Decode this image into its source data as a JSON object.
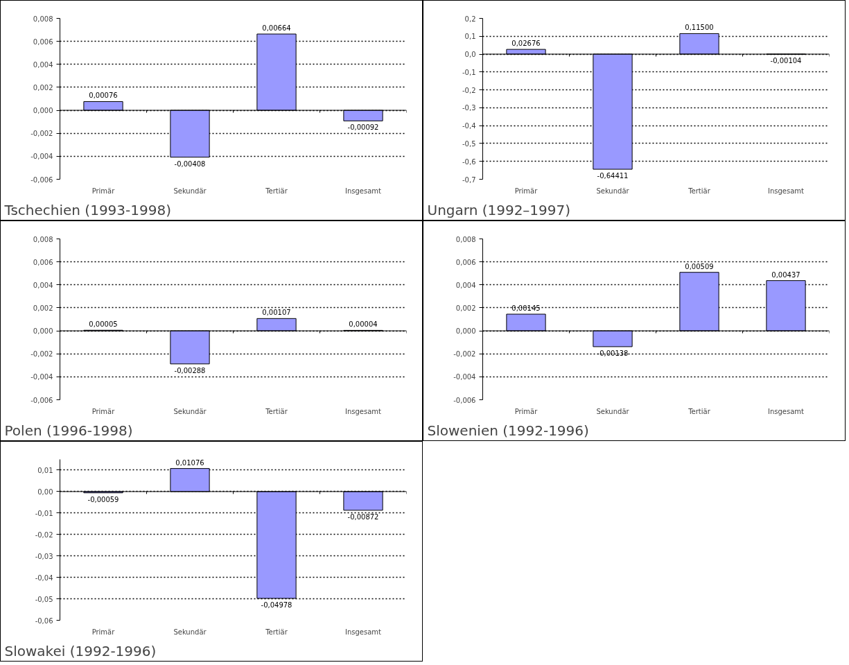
{
  "chart_data": [
    {
      "type": "bar",
      "title": "Tschechien (1993-1998)",
      "categories": [
        "Primär",
        "Sekundär",
        "Tertiär",
        "Insgesamt"
      ],
      "values": [
        0.00076,
        -0.00408,
        0.00664,
        -0.00092
      ],
      "value_labels": [
        "0,00076",
        "-0,00408",
        "0,00664",
        "-0,00092"
      ],
      "color": "#9999ff",
      "ylim": [
        -0.006,
        0.008
      ],
      "yticks": [
        {
          "value": -0.006,
          "label": "-0,006"
        },
        {
          "value": -0.004,
          "label": "-0,004"
        },
        {
          "value": -0.002,
          "label": "-0,002"
        },
        {
          "value": 0,
          "label": "0,000"
        },
        {
          "value": 0.002,
          "label": "0,002"
        },
        {
          "value": 0.004,
          "label": "0,004"
        },
        {
          "value": 0.006,
          "label": "0,006"
        },
        {
          "value": 0.008,
          "label": "0,008"
        }
      ],
      "grid": "y"
    },
    {
      "type": "bar",
      "title": "Ungarn (1992–1997)",
      "categories": [
        "Primär",
        "Sekundär",
        "Tertiär",
        "Insgesamt"
      ],
      "values": [
        0.02676,
        -0.64411,
        0.115,
        -0.00104
      ],
      "value_labels": [
        "0,02676",
        "-0,64411",
        "0,11500",
        "-0,00104"
      ],
      "color": "#9999ff",
      "ylim": [
        -0.7,
        0.2
      ],
      "yticks": [
        {
          "value": -0.7,
          "label": "-0,7"
        },
        {
          "value": -0.6,
          "label": "-0,6"
        },
        {
          "value": -0.5,
          "label": "-0,5"
        },
        {
          "value": -0.4,
          "label": "-0,4"
        },
        {
          "value": -0.3,
          "label": "-0,3"
        },
        {
          "value": -0.2,
          "label": "-0,2"
        },
        {
          "value": -0.1,
          "label": "-0,1"
        },
        {
          "value": 0,
          "label": "0,0"
        },
        {
          "value": 0.1,
          "label": "0,1"
        },
        {
          "value": 0.2,
          "label": "0,2"
        }
      ],
      "grid": "y"
    },
    {
      "type": "bar",
      "title": "Polen (1996-1998)",
      "categories": [
        "Primär",
        "Sekundär",
        "Tertiär",
        "Insgesamt"
      ],
      "values": [
        5e-05,
        -0.00288,
        0.00107,
        4e-05
      ],
      "value_labels": [
        "0,00005",
        "-0,00288",
        "0,00107",
        "0,00004"
      ],
      "color": "#9999ff",
      "ylim": [
        -0.006,
        0.008
      ],
      "yticks": [
        {
          "value": -0.006,
          "label": "-0,006"
        },
        {
          "value": -0.004,
          "label": "-0,004"
        },
        {
          "value": -0.002,
          "label": "-0,002"
        },
        {
          "value": 0,
          "label": "0,000"
        },
        {
          "value": 0.002,
          "label": "0,002"
        },
        {
          "value": 0.004,
          "label": "0,004"
        },
        {
          "value": 0.006,
          "label": "0,006"
        },
        {
          "value": 0.008,
          "label": "0,008"
        }
      ],
      "grid": "y"
    },
    {
      "type": "bar",
      "title": "Slowenien (1992-1996)",
      "categories": [
        "Primär",
        "Sekundär",
        "Tertiär",
        "Insgesamt"
      ],
      "values": [
        0.00145,
        -0.00138,
        0.00509,
        0.00437
      ],
      "value_labels": [
        "0,00145",
        "-0,00138",
        "0,00509",
        "0,00437"
      ],
      "color": "#9999ff",
      "ylim": [
        -0.006,
        0.008
      ],
      "yticks": [
        {
          "value": -0.006,
          "label": "-0,006"
        },
        {
          "value": -0.004,
          "label": "-0,004"
        },
        {
          "value": -0.002,
          "label": "-0,002"
        },
        {
          "value": 0,
          "label": "0,000"
        },
        {
          "value": 0.002,
          "label": "0,002"
        },
        {
          "value": 0.004,
          "label": "0,004"
        },
        {
          "value": 0.006,
          "label": "0,006"
        },
        {
          "value": 0.008,
          "label": "0,008"
        }
      ],
      "grid": "y"
    },
    {
      "type": "bar",
      "title": "Slowakei (1992-1996)",
      "categories": [
        "Primär",
        "Sekundär",
        "Tertiär",
        "Insgesamt"
      ],
      "values": [
        -0.00059,
        0.01076,
        -0.04978,
        -0.00872
      ],
      "value_labels": [
        "-0,00059",
        "0,01076",
        "-0,04978",
        "-0,00872"
      ],
      "color": "#9999ff",
      "ylim": [
        -0.06,
        0.015
      ],
      "yticks": [
        {
          "value": -0.06,
          "label": "-0,06"
        },
        {
          "value": -0.05,
          "label": "-0,05"
        },
        {
          "value": -0.04,
          "label": "-0,04"
        },
        {
          "value": -0.03,
          "label": "-0,03"
        },
        {
          "value": -0.02,
          "label": "-0,02"
        },
        {
          "value": -0.01,
          "label": "-0,01"
        },
        {
          "value": 0,
          "label": "0,00"
        },
        {
          "value": 0.01,
          "label": "0,01"
        }
      ],
      "grid": "y"
    }
  ]
}
